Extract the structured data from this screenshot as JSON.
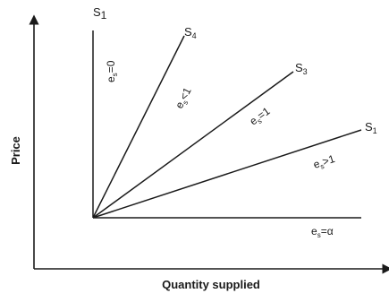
{
  "axes": {
    "y_title": "Price",
    "x_title": "Quantity supplied"
  },
  "curves": [
    {
      "name": "S",
      "sub": "1",
      "elasticity": "e",
      "elasticity_sub": "s",
      "elasticity_rel": "=0"
    },
    {
      "name": "S",
      "sub": "4",
      "elasticity": "e",
      "elasticity_sub": "s",
      "elasticity_rel": "<1"
    },
    {
      "name": "S",
      "sub": "3",
      "elasticity": "e",
      "elasticity_sub": "s",
      "elasticity_rel": "=1"
    },
    {
      "name": "S",
      "sub": "1",
      "elasticity": "e",
      "elasticity_sub": "s",
      "elasticity_rel": ">1"
    },
    {
      "name": "",
      "sub": "",
      "elasticity": "e",
      "elasticity_sub": "s",
      "elasticity_rel": "=α"
    }
  ]
}
